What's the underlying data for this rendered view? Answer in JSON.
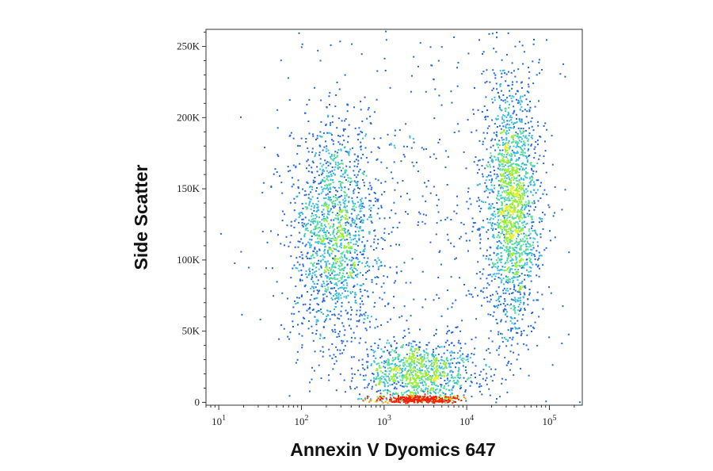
{
  "chart_data": {
    "type": "scatter",
    "subtype": "flow-cytometry-density-dot-plot",
    "title": "",
    "xlabel": "Annexin V Dyomics 647",
    "ylabel": "Side Scatter",
    "x_scale": "log",
    "y_scale": "linear",
    "xlim": [
      7,
      250000
    ],
    "ylim": [
      -2000,
      262000
    ],
    "x_ticks": [
      {
        "value": 10,
        "base": "10",
        "exp": "1"
      },
      {
        "value": 100,
        "base": "10",
        "exp": "2"
      },
      {
        "value": 1000,
        "base": "10",
        "exp": "3"
      },
      {
        "value": 10000,
        "base": "10",
        "exp": "4"
      },
      {
        "value": 100000,
        "base": "10",
        "exp": "5"
      }
    ],
    "y_ticks": [
      {
        "value": 0,
        "label": "0"
      },
      {
        "value": 50000,
        "label": "50K"
      },
      {
        "value": 100000,
        "label": "100K"
      },
      {
        "value": 150000,
        "label": "150K"
      },
      {
        "value": 200000,
        "label": "200K"
      },
      {
        "value": 250000,
        "label": "250K"
      }
    ],
    "grid": false,
    "colormap": [
      "#1a1aa6",
      "#2266dd",
      "#33bbdd",
      "#55dd99",
      "#99ee33",
      "#eeee22",
      "#ff9900",
      "#ee2200"
    ],
    "populations": [
      {
        "x_center": 250,
        "y_center": 120000,
        "x_spread_log10": 0.28,
        "y_spread": 40000,
        "weight": 0.3
      },
      {
        "x_center": 35000,
        "y_center": 140000,
        "x_spread_log10": 0.17,
        "y_spread": 45000,
        "weight": 0.35
      },
      {
        "x_center": 2500,
        "y_center": 20000,
        "x_spread_log10": 0.35,
        "y_spread": 12000,
        "weight": 0.2
      },
      {
        "x_center": 2500,
        "y_center": 2500,
        "x_spread_log10": 0.25,
        "y_spread": 1500,
        "weight": 0.06
      },
      {
        "x_center": 3000,
        "y_center": 130000,
        "x_spread_log10": 0.9,
        "y_spread": 70000,
        "weight": 0.09
      }
    ]
  }
}
